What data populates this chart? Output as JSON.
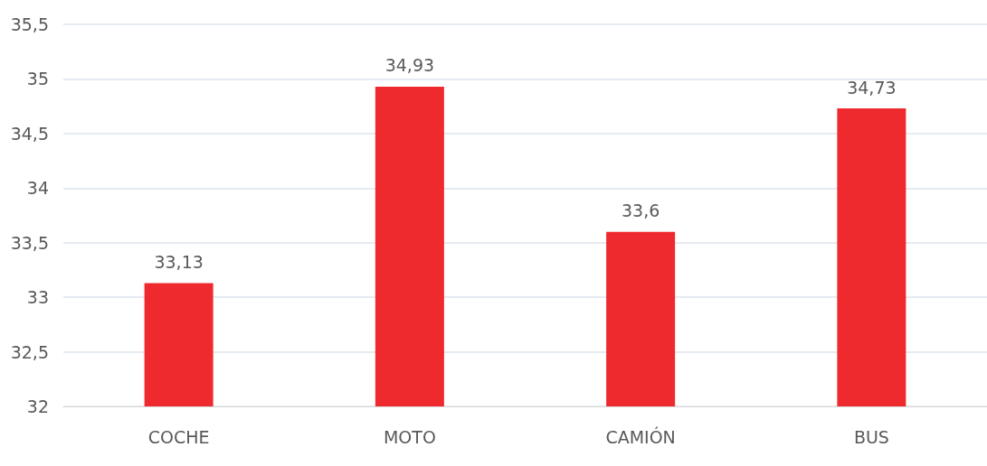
{
  "chart_data": {
    "type": "bar",
    "categories": [
      "COCHE",
      "MOTO",
      "CAMIÓN",
      "BUS"
    ],
    "values": [
      33.13,
      34.93,
      33.6,
      34.73
    ],
    "value_labels": [
      "33,13",
      "34,93",
      "33,6",
      "34,73"
    ],
    "color": "#ee2a2e",
    "ylim": [
      32,
      35.5
    ],
    "yticks": [
      32,
      {
        "value": 32.5,
        "label": "32,5"
      },
      33,
      {
        "value": 33.5,
        "label": "33,5"
      },
      34,
      {
        "value": 34.5,
        "label": "34,5"
      },
      35,
      {
        "value": 35.5,
        "label": "35,5"
      }
    ],
    "grid": true
  }
}
